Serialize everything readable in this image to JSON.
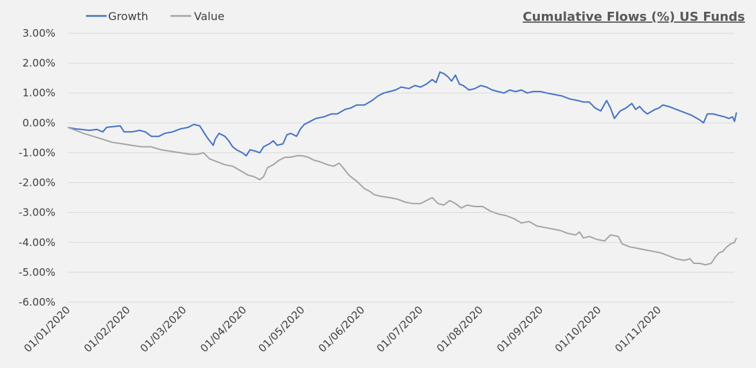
{
  "chart_data": {
    "type": "line",
    "title": "Cumulative Flows (%) US Funds",
    "xlabel": "",
    "ylabel": "",
    "x_ticks": [
      "01/01/2020",
      "01/02/2020",
      "01/03/2020",
      "01/04/2020",
      "01/05/2020",
      "01/06/2020",
      "01/07/2020",
      "01/08/2020",
      "01/09/2020",
      "01/10/2020",
      "01/11/2020"
    ],
    "y_ticks": [
      "3.00%",
      "2.00%",
      "1.00%",
      "0.00%",
      "-1.00%",
      "-2.00%",
      "-3.00%",
      "-4.00%",
      "-5.00%",
      "-6.00%"
    ],
    "ylim": [
      -6,
      3
    ],
    "xlim": [
      "2020-01-01",
      "2020-12-10"
    ],
    "grid": true,
    "legend_position": "top-left",
    "colors": {
      "growth": "#4472c4",
      "value": "#a5a5a5",
      "grid": "#d9d9d9"
    },
    "series": [
      {
        "name": "Growth",
        "points": [
          [
            "2020-01-01",
            -0.15
          ],
          [
            "2020-01-05",
            -0.2
          ],
          [
            "2020-01-08",
            -0.22
          ],
          [
            "2020-01-12",
            -0.25
          ],
          [
            "2020-01-16",
            -0.22
          ],
          [
            "2020-01-19",
            -0.3
          ],
          [
            "2020-01-21",
            -0.15
          ],
          [
            "2020-01-25",
            -0.12
          ],
          [
            "2020-01-28",
            -0.1
          ],
          [
            "2020-01-30",
            -0.3
          ],
          [
            "2020-02-03",
            -0.3
          ],
          [
            "2020-02-07",
            -0.25
          ],
          [
            "2020-02-10",
            -0.3
          ],
          [
            "2020-02-13",
            -0.45
          ],
          [
            "2020-02-17",
            -0.45
          ],
          [
            "2020-02-20",
            -0.35
          ],
          [
            "2020-02-24",
            -0.3
          ],
          [
            "2020-02-28",
            -0.2
          ],
          [
            "2020-03-03",
            -0.15
          ],
          [
            "2020-03-06",
            -0.05
          ],
          [
            "2020-03-09",
            -0.1
          ],
          [
            "2020-03-11",
            -0.3
          ],
          [
            "2020-03-13",
            -0.5
          ],
          [
            "2020-03-16",
            -0.75
          ],
          [
            "2020-03-17",
            -0.55
          ],
          [
            "2020-03-19",
            -0.35
          ],
          [
            "2020-03-22",
            -0.45
          ],
          [
            "2020-03-24",
            -0.6
          ],
          [
            "2020-03-26",
            -0.8
          ],
          [
            "2020-03-28",
            -0.9
          ],
          [
            "2020-03-31",
            -1.0
          ],
          [
            "2020-04-02",
            -1.1
          ],
          [
            "2020-04-04",
            -0.9
          ],
          [
            "2020-04-07",
            -0.95
          ],
          [
            "2020-04-09",
            -1.0
          ],
          [
            "2020-04-11",
            -0.8
          ],
          [
            "2020-04-14",
            -0.7
          ],
          [
            "2020-04-16",
            -0.6
          ],
          [
            "2020-04-18",
            -0.75
          ],
          [
            "2020-04-21",
            -0.7
          ],
          [
            "2020-04-23",
            -0.4
          ],
          [
            "2020-04-25",
            -0.35
          ],
          [
            "2020-04-28",
            -0.45
          ],
          [
            "2020-04-30",
            -0.2
          ],
          [
            "2020-05-02",
            -0.05
          ],
          [
            "2020-05-05",
            0.05
          ],
          [
            "2020-05-08",
            0.15
          ],
          [
            "2020-05-12",
            0.2
          ],
          [
            "2020-05-16",
            0.3
          ],
          [
            "2020-05-19",
            0.3
          ],
          [
            "2020-05-23",
            0.45
          ],
          [
            "2020-05-26",
            0.5
          ],
          [
            "2020-05-29",
            0.6
          ],
          [
            "2020-06-02",
            0.6
          ],
          [
            "2020-06-06",
            0.75
          ],
          [
            "2020-06-09",
            0.9
          ],
          [
            "2020-06-12",
            1.0
          ],
          [
            "2020-06-15",
            1.05
          ],
          [
            "2020-06-18",
            1.1
          ],
          [
            "2020-06-21",
            1.2
          ],
          [
            "2020-06-25",
            1.15
          ],
          [
            "2020-06-28",
            1.25
          ],
          [
            "2020-07-01",
            1.2
          ],
          [
            "2020-07-04",
            1.3
          ],
          [
            "2020-07-07",
            1.45
          ],
          [
            "2020-07-09",
            1.35
          ],
          [
            "2020-07-11",
            1.7
          ],
          [
            "2020-07-13",
            1.65
          ],
          [
            "2020-07-15",
            1.55
          ],
          [
            "2020-07-17",
            1.4
          ],
          [
            "2020-07-19",
            1.6
          ],
          [
            "2020-07-21",
            1.3
          ],
          [
            "2020-07-23",
            1.25
          ],
          [
            "2020-07-26",
            1.1
          ],
          [
            "2020-07-29",
            1.15
          ],
          [
            "2020-08-01",
            1.25
          ],
          [
            "2020-08-04",
            1.2
          ],
          [
            "2020-08-07",
            1.1
          ],
          [
            "2020-08-10",
            1.05
          ],
          [
            "2020-08-13",
            1.0
          ],
          [
            "2020-08-16",
            1.1
          ],
          [
            "2020-08-19",
            1.05
          ],
          [
            "2020-08-22",
            1.1
          ],
          [
            "2020-08-25",
            1.0
          ],
          [
            "2020-08-28",
            1.05
          ],
          [
            "2020-09-01",
            1.05
          ],
          [
            "2020-09-04",
            1.0
          ],
          [
            "2020-09-08",
            0.95
          ],
          [
            "2020-09-12",
            0.9
          ],
          [
            "2020-09-16",
            0.8
          ],
          [
            "2020-09-20",
            0.75
          ],
          [
            "2020-09-23",
            0.7
          ],
          [
            "2020-09-26",
            0.7
          ],
          [
            "2020-09-29",
            0.5
          ],
          [
            "2020-10-02",
            0.4
          ],
          [
            "2020-10-05",
            0.75
          ],
          [
            "2020-10-07",
            0.5
          ],
          [
            "2020-10-09",
            0.15
          ],
          [
            "2020-10-12",
            0.4
          ],
          [
            "2020-10-15",
            0.5
          ],
          [
            "2020-10-18",
            0.65
          ],
          [
            "2020-10-20",
            0.45
          ],
          [
            "2020-10-22",
            0.55
          ],
          [
            "2020-10-24",
            0.4
          ],
          [
            "2020-10-26",
            0.3
          ],
          [
            "2020-10-30",
            0.45
          ],
          [
            "2020-11-01",
            0.5
          ],
          [
            "2020-11-03",
            0.6
          ],
          [
            "2020-11-06",
            0.55
          ],
          [
            "2020-11-10",
            0.45
          ],
          [
            "2020-11-14",
            0.35
          ],
          [
            "2020-11-18",
            0.25
          ],
          [
            "2020-11-22",
            0.1
          ],
          [
            "2020-11-24",
            0.0
          ],
          [
            "2020-11-26",
            0.3
          ],
          [
            "2020-11-29",
            0.3
          ],
          [
            "2020-12-02",
            0.25
          ],
          [
            "2020-12-05",
            0.2
          ],
          [
            "2020-12-07",
            0.15
          ],
          [
            "2020-12-09",
            0.2
          ],
          [
            "2020-12-10",
            0.05
          ],
          [
            "2020-12-11",
            0.35
          ]
        ]
      },
      {
        "name": "Value",
        "points": [
          [
            "2020-01-01",
            -0.15
          ],
          [
            "2020-01-05",
            -0.25
          ],
          [
            "2020-01-09",
            -0.35
          ],
          [
            "2020-01-14",
            -0.45
          ],
          [
            "2020-01-19",
            -0.55
          ],
          [
            "2020-01-24",
            -0.65
          ],
          [
            "2020-01-29",
            -0.7
          ],
          [
            "2020-02-03",
            -0.75
          ],
          [
            "2020-02-08",
            -0.8
          ],
          [
            "2020-02-13",
            -0.8
          ],
          [
            "2020-02-18",
            -0.9
          ],
          [
            "2020-02-23",
            -0.95
          ],
          [
            "2020-02-28",
            -1.0
          ],
          [
            "2020-03-04",
            -1.05
          ],
          [
            "2020-03-08",
            -1.05
          ],
          [
            "2020-03-11",
            -1.0
          ],
          [
            "2020-03-14",
            -1.2
          ],
          [
            "2020-03-18",
            -1.3
          ],
          [
            "2020-03-22",
            -1.4
          ],
          [
            "2020-03-26",
            -1.45
          ],
          [
            "2020-03-30",
            -1.6
          ],
          [
            "2020-04-03",
            -1.75
          ],
          [
            "2020-04-06",
            -1.8
          ],
          [
            "2020-04-09",
            -1.9
          ],
          [
            "2020-04-11",
            -1.8
          ],
          [
            "2020-04-13",
            -1.5
          ],
          [
            "2020-04-16",
            -1.4
          ],
          [
            "2020-04-19",
            -1.25
          ],
          [
            "2020-04-22",
            -1.15
          ],
          [
            "2020-04-25",
            -1.15
          ],
          [
            "2020-04-28",
            -1.1
          ],
          [
            "2020-05-01",
            -1.1
          ],
          [
            "2020-05-04",
            -1.15
          ],
          [
            "2020-05-07",
            -1.25
          ],
          [
            "2020-05-10",
            -1.3
          ],
          [
            "2020-05-14",
            -1.4
          ],
          [
            "2020-05-17",
            -1.45
          ],
          [
            "2020-05-20",
            -1.35
          ],
          [
            "2020-05-22",
            -1.5
          ],
          [
            "2020-05-25",
            -1.75
          ],
          [
            "2020-05-29",
            -1.95
          ],
          [
            "2020-06-02",
            -2.2
          ],
          [
            "2020-06-05",
            -2.3
          ],
          [
            "2020-06-07",
            -2.4
          ],
          [
            "2020-06-10",
            -2.45
          ],
          [
            "2020-06-15",
            -2.5
          ],
          [
            "2020-06-19",
            -2.55
          ],
          [
            "2020-06-23",
            -2.65
          ],
          [
            "2020-06-27",
            -2.7
          ],
          [
            "2020-07-01",
            -2.7
          ],
          [
            "2020-07-04",
            -2.6
          ],
          [
            "2020-07-07",
            -2.5
          ],
          [
            "2020-07-10",
            -2.7
          ],
          [
            "2020-07-13",
            -2.75
          ],
          [
            "2020-07-16",
            -2.6
          ],
          [
            "2020-07-19",
            -2.7
          ],
          [
            "2020-07-22",
            -2.85
          ],
          [
            "2020-07-25",
            -2.75
          ],
          [
            "2020-07-29",
            -2.8
          ],
          [
            "2020-08-02",
            -2.8
          ],
          [
            "2020-08-06",
            -2.95
          ],
          [
            "2020-08-10",
            -3.05
          ],
          [
            "2020-08-14",
            -3.1
          ],
          [
            "2020-08-18",
            -3.2
          ],
          [
            "2020-08-22",
            -3.35
          ],
          [
            "2020-08-26",
            -3.3
          ],
          [
            "2020-08-30",
            -3.45
          ],
          [
            "2020-09-03",
            -3.5
          ],
          [
            "2020-09-07",
            -3.55
          ],
          [
            "2020-09-11",
            -3.6
          ],
          [
            "2020-09-15",
            -3.7
          ],
          [
            "2020-09-19",
            -3.75
          ],
          [
            "2020-09-21",
            -3.65
          ],
          [
            "2020-09-23",
            -3.85
          ],
          [
            "2020-09-26",
            -3.8
          ],
          [
            "2020-09-30",
            -3.9
          ],
          [
            "2020-10-04",
            -3.95
          ],
          [
            "2020-10-07",
            -3.75
          ],
          [
            "2020-10-11",
            -3.8
          ],
          [
            "2020-10-13",
            -4.05
          ],
          [
            "2020-10-17",
            -4.15
          ],
          [
            "2020-10-21",
            -4.2
          ],
          [
            "2020-10-25",
            -4.25
          ],
          [
            "2020-10-29",
            -4.3
          ],
          [
            "2020-11-02",
            -4.35
          ],
          [
            "2020-11-06",
            -4.45
          ],
          [
            "2020-11-10",
            -4.55
          ],
          [
            "2020-11-14",
            -4.6
          ],
          [
            "2020-11-17",
            -4.55
          ],
          [
            "2020-11-19",
            -4.7
          ],
          [
            "2020-11-22",
            -4.7
          ],
          [
            "2020-11-25",
            -4.75
          ],
          [
            "2020-11-28",
            -4.7
          ],
          [
            "2020-11-30",
            -4.5
          ],
          [
            "2020-12-02",
            -4.35
          ],
          [
            "2020-12-04",
            -4.3
          ],
          [
            "2020-12-06",
            -4.15
          ],
          [
            "2020-12-08",
            -4.05
          ],
          [
            "2020-12-10",
            -4.0
          ],
          [
            "2020-12-11",
            -3.85
          ]
        ]
      }
    ]
  }
}
